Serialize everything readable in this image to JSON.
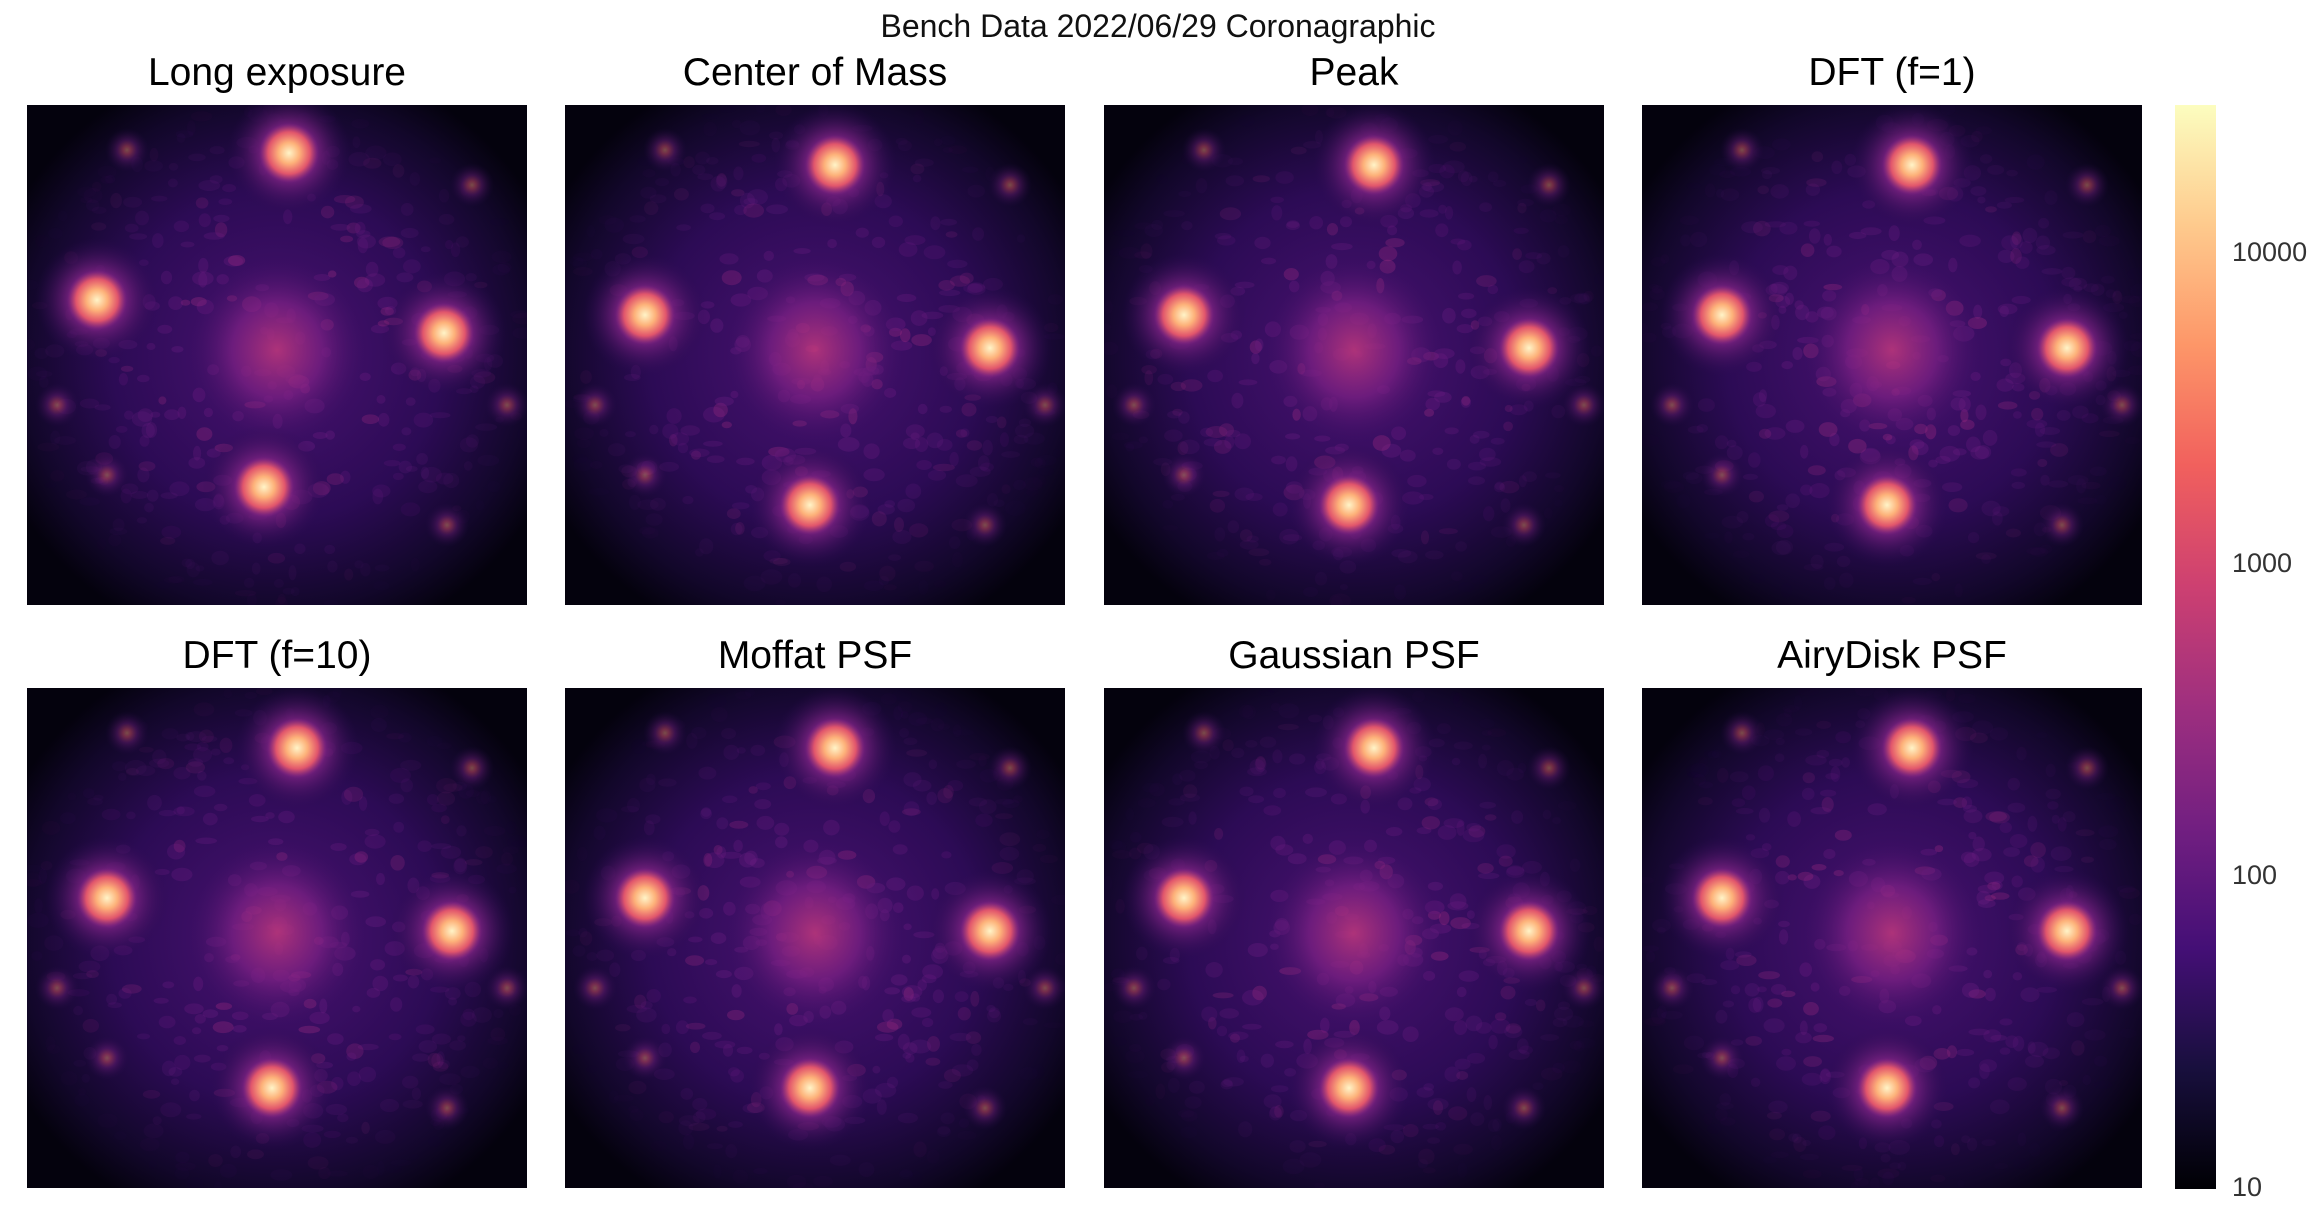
{
  "figure": {
    "suptitle": "Bench Data 2022/06/29 Coronagraphic",
    "panels": [
      {
        "title": "Long exposure"
      },
      {
        "title": "Center of Mass"
      },
      {
        "title": "Peak"
      },
      {
        "title": "DFT (f=1)"
      },
      {
        "title": "DFT (f=10)"
      },
      {
        "title": "Moffat PSF"
      },
      {
        "title": "Gaussian PSF"
      },
      {
        "title": "AiryDisk PSF"
      }
    ],
    "colorbar": {
      "colormap": "magma",
      "scale": "log",
      "range": [
        10,
        30000
      ],
      "ticks": [
        "10",
        "100",
        "1000",
        "10000"
      ],
      "colors": [
        "#000004",
        "#180f3d",
        "#440f76",
        "#721f81",
        "#9e2f7f",
        "#cd4071",
        "#f1605d",
        "#fd9668",
        "#feca8d",
        "#fcfdbf"
      ]
    }
  }
}
